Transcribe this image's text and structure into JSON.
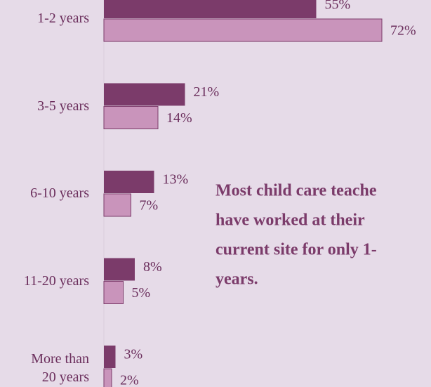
{
  "chart_data": {
    "type": "bar",
    "orientation": "horizontal",
    "categories": [
      "1-2 years",
      "3-5 years",
      "6-10 years",
      "11-20 years",
      "More than 20 years"
    ],
    "series": [
      {
        "color": "#7b3b6a",
        "values": [
          55,
          21,
          13,
          8,
          3
        ],
        "value_labels": [
          "55%",
          "21%",
          "13%",
          "8%",
          "3%"
        ]
      },
      {
        "color": "#c994bb",
        "values": [
          72,
          14,
          7,
          5,
          2
        ],
        "value_labels": [
          "72%",
          "14%",
          "7%",
          "5%",
          "2%"
        ]
      }
    ],
    "annotation": [
      "Most child care teache",
      "have worked at their",
      "current site for only 1-",
      "years."
    ]
  }
}
